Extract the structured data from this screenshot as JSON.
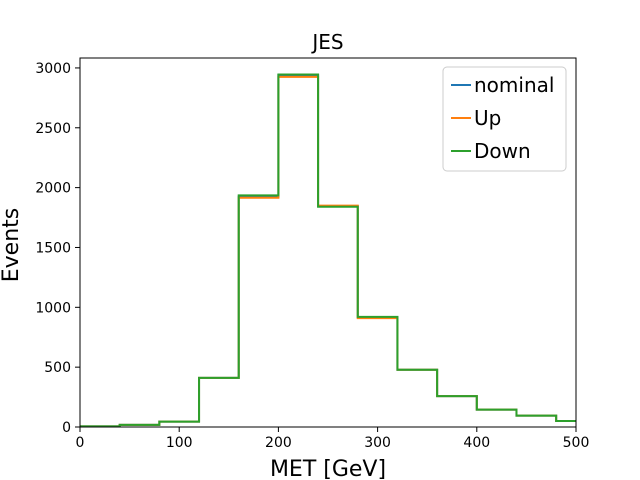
{
  "chart_data": {
    "type": "step",
    "title": "JES",
    "xlabel": "MET [GeV]",
    "ylabel": "Events",
    "xlim": [
      0,
      500
    ],
    "ylim": [
      0,
      3083
    ],
    "grid": false,
    "legend_position": "top-right",
    "bin_edges": [
      0,
      40,
      80,
      120,
      160,
      200,
      240,
      280,
      320,
      360,
      400,
      440,
      480,
      520
    ],
    "x_ticks": [
      "0",
      "100",
      "200",
      "300",
      "400",
      "500"
    ],
    "y_ticks": [
      "0",
      "500",
      "1000",
      "1500",
      "2000",
      "2500",
      "3000"
    ],
    "series": [
      {
        "name": "nominal",
        "color": "#1f77b4",
        "values": [
          5,
          18,
          45,
          410,
          1925,
          2940,
          1845,
          915,
          478,
          258,
          145,
          95,
          50
        ]
      },
      {
        "name": "Up",
        "color": "#ff7f0e",
        "values": [
          5,
          18,
          45,
          410,
          1915,
          2925,
          1850,
          910,
          478,
          258,
          145,
          95,
          50
        ]
      },
      {
        "name": "Down",
        "color": "#2ca02c",
        "values": [
          5,
          18,
          45,
          410,
          1935,
          2945,
          1840,
          920,
          478,
          258,
          145,
          95,
          50
        ]
      }
    ]
  }
}
